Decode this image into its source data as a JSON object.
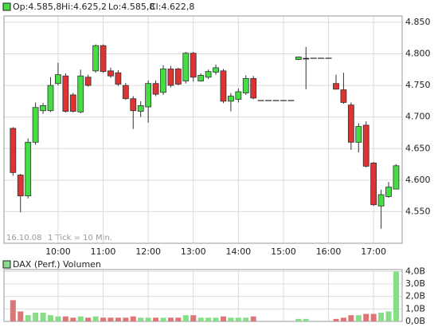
{
  "header": {
    "open": "Op:4.585,8",
    "high": "Hi:4.625,2",
    "low": "Lo:4.585,8",
    "close": "Cl:4.622,8"
  },
  "chart_data": [
    {
      "type": "candlestick",
      "annotations": [
        "16.10.08",
        "1 Tick = 10 Min."
      ],
      "up_color": "#44dd44",
      "down_color": "#dd3333",
      "flat_color": "#000000",
      "grid": true,
      "x": [
        540,
        550,
        560,
        570,
        580,
        590,
        600,
        610,
        620,
        630,
        640,
        650,
        660,
        670,
        680,
        690,
        700,
        710,
        720,
        730,
        740,
        750,
        760,
        770,
        780,
        790,
        800,
        810,
        820,
        830,
        840,
        850,
        860,
        870,
        880,
        890,
        900,
        910,
        920,
        930,
        940,
        950,
        960,
        970,
        980,
        990,
        1000,
        1010,
        1020,
        1030,
        1040,
        1050
      ],
      "open": [
        4682,
        4608,
        4575,
        4660,
        4710,
        4710,
        4753,
        4765,
        4735,
        4708,
        4763,
        4773,
        4813,
        4773,
        4770,
        4750,
        4729,
        4709,
        4716,
        4753,
        4739,
        4776,
        4776,
        4757,
        4801,
        4757,
        4763,
        4771,
        4773,
        4725,
        4728,
        4738,
        4761,
        4726,
        4726,
        4726,
        4726,
        4726,
        4791,
        4793,
        4793,
        4793,
        4793,
        4753,
        4743,
        4719,
        4660,
        4687,
        4627,
        4559,
        4574,
        4585.8
      ],
      "close": [
        4612,
        4575,
        4660,
        4715,
        4718,
        4750,
        4767,
        4709,
        4709,
        4765,
        4750,
        4813,
        4772,
        4765,
        4752,
        4729,
        4710,
        4718,
        4753,
        4736,
        4776,
        4750,
        4752,
        4801,
        4763,
        4766,
        4772,
        4778,
        4725,
        4733,
        4740,
        4761,
        4730,
        4726,
        4726,
        4726,
        4726,
        4726,
        4795,
        4793,
        4793,
        4793,
        4793,
        4744,
        4723,
        4660,
        4685,
        4622,
        4561,
        4577,
        4589,
        4622.8
      ],
      "high": [
        4684,
        4610,
        4666,
        4723,
        4722,
        4763,
        4786,
        4769,
        4738,
        4775,
        4767,
        4815,
        4815,
        4778,
        4774,
        4754,
        4733,
        4725,
        4758,
        4758,
        4782,
        4781,
        4778,
        4803,
        4803,
        4769,
        4775,
        4783,
        4776,
        4738,
        4745,
        4766,
        4765,
        4726,
        4726,
        4726,
        4726,
        4726,
        4796,
        4811,
        4793,
        4793,
        4793,
        4767,
        4770,
        4723,
        4690,
        4693,
        4629,
        4585,
        4597,
        4625.2
      ],
      "low": [
        4607,
        4549,
        4571,
        4656,
        4705,
        4708,
        4750,
        4707,
        4707,
        4706,
        4748,
        4770,
        4770,
        4762,
        4749,
        4727,
        4681,
        4700,
        4691,
        4733,
        4735,
        4747,
        4750,
        4753,
        4756,
        4756,
        4760,
        4767,
        4722,
        4709,
        4723,
        4735,
        4728,
        4726,
        4726,
        4726,
        4726,
        4726,
        4790,
        4744,
        4793,
        4793,
        4793,
        4744,
        4721,
        4648,
        4644,
        4620,
        4559,
        4523,
        4572,
        4585.8
      ],
      "xlim": [
        528,
        1058
      ],
      "xticks": [
        {
          "value": 600,
          "label": "10:00"
        },
        {
          "value": 660,
          "label": "11:00"
        },
        {
          "value": 720,
          "label": "12:00"
        },
        {
          "value": 780,
          "label": "13:00"
        },
        {
          "value": 840,
          "label": "14:00"
        },
        {
          "value": 900,
          "label": "15:00"
        },
        {
          "value": 960,
          "label": "16:00"
        },
        {
          "value": 1020,
          "label": "17:00"
        }
      ],
      "ylim": [
        4500,
        4860
      ],
      "yticks": [
        {
          "value": 4550,
          "label": "4.550"
        },
        {
          "value": 4600,
          "label": "4.600"
        },
        {
          "value": 4650,
          "label": "4.650"
        },
        {
          "value": 4700,
          "label": "4.700"
        },
        {
          "value": 4750,
          "label": "4.750"
        },
        {
          "value": 4800,
          "label": "4.800"
        },
        {
          "value": 4850,
          "label": "4.850"
        }
      ]
    },
    {
      "type": "bar",
      "title": "DAX (Perf.) Volumen",
      "up_color": "#88dd88",
      "down_color": "#dd7777",
      "grid": true,
      "values": [
        1.7,
        0.8,
        0.5,
        0.7,
        0.7,
        0.5,
        0.4,
        0.4,
        0.3,
        0.4,
        0.3,
        0.4,
        0.3,
        0.3,
        0.3,
        0.3,
        0.4,
        0.3,
        0.3,
        0.3,
        0.3,
        0.3,
        0.3,
        0.5,
        0.5,
        0.3,
        0.3,
        0.3,
        0.4,
        0.3,
        0.3,
        0.3,
        0.4,
        0,
        0,
        0,
        0,
        0,
        0.2,
        0.2,
        0,
        0,
        0,
        0.2,
        0.3,
        0.5,
        0.5,
        0.6,
        0.6,
        0.7,
        0.8,
        4.0
      ],
      "ylim": [
        0,
        4.15
      ],
      "yticks": [
        {
          "value": 0,
          "label": "0,0B"
        },
        {
          "value": 1,
          "label": "1,0B"
        },
        {
          "value": 2,
          "label": "2,0B"
        },
        {
          "value": 3,
          "label": "3,0B"
        },
        {
          "value": 4,
          "label": "4,0B"
        }
      ]
    }
  ]
}
